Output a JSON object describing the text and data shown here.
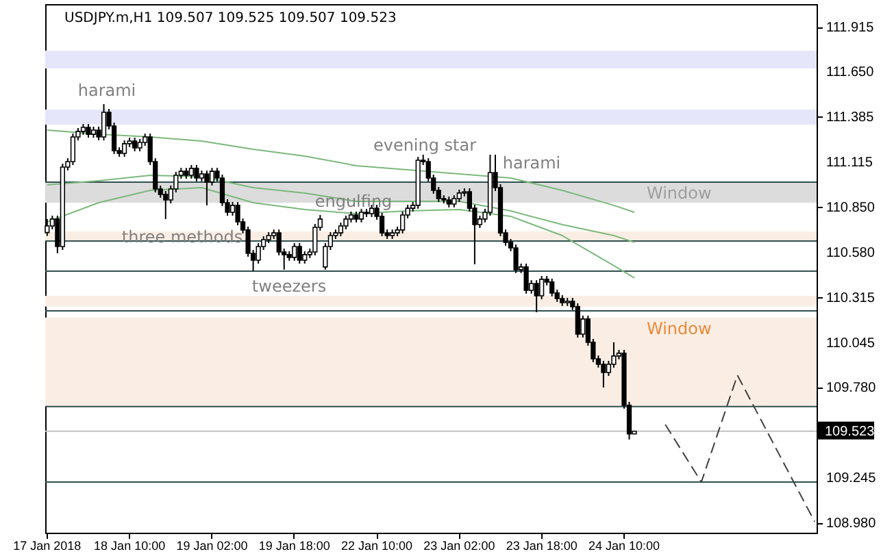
{
  "chart_data": {
    "type": "candlestick",
    "title": "USDJPY.m,H1 109.507 109.525 109.507 109.523",
    "categories": [
      "17 Jan 2018",
      null,
      null,
      null,
      null,
      null,
      null,
      null,
      null,
      null,
      null,
      null,
      null,
      null,
      null,
      null,
      "18 Jan 10:00",
      null,
      null,
      null,
      null,
      null,
      null,
      null,
      null,
      null,
      null,
      null,
      null,
      null,
      null,
      null,
      "19 Jan 02:00",
      null,
      null,
      null,
      null,
      null,
      null,
      null,
      null,
      null,
      null,
      null,
      null,
      null,
      null,
      null,
      "19 Jan 18:00",
      null,
      null,
      null,
      null,
      null,
      null,
      null,
      null,
      null,
      null,
      null,
      null,
      null,
      null,
      null,
      "22 Jan 10:00",
      null,
      null,
      null,
      null,
      null,
      null,
      null,
      null,
      null,
      null,
      null,
      null,
      null,
      null,
      null,
      "23 Jan 02:00",
      null,
      null,
      null,
      null,
      null,
      null,
      null,
      null,
      null,
      null,
      null,
      null,
      null,
      null,
      null,
      "23 Jan 18:00",
      null,
      null,
      null,
      null,
      null,
      null,
      null,
      null,
      null,
      null,
      null,
      null,
      null,
      null,
      null,
      "24 Jan 10:00",
      null,
      null,
      null,
      null,
      null,
      null,
      null,
      null,
      null,
      null,
      null,
      null,
      null,
      null,
      null,
      null,
      null,
      null,
      null,
      null,
      null,
      null,
      null,
      null,
      null,
      null,
      null,
      null,
      null,
      null,
      null,
      null,
      null,
      null,
      null,
      null,
      null
    ],
    "ohlc": [
      [
        110.7,
        110.78,
        110.68,
        110.739
      ],
      [
        110.739,
        110.8,
        110.719,
        110.78
      ],
      [
        110.78,
        110.8,
        110.577,
        110.617
      ],
      [
        110.617,
        111.108,
        110.597,
        111.088
      ],
      [
        111.088,
        111.14,
        111.068,
        111.12
      ],
      [
        111.12,
        111.286,
        111.1,
        111.266
      ],
      [
        111.266,
        111.319,
        111.246,
        111.299
      ],
      [
        111.299,
        111.343,
        111.279,
        111.323
      ],
      [
        111.323,
        111.343,
        111.262,
        111.282
      ],
      [
        111.282,
        111.327,
        111.262,
        111.307
      ],
      [
        111.307,
        111.327,
        111.246,
        111.266
      ],
      [
        111.266,
        111.461,
        111.246,
        111.412
      ],
      [
        111.412,
        111.432,
        111.311,
        111.331
      ],
      [
        111.331,
        111.351,
        111.165,
        111.185
      ],
      [
        111.185,
        111.205,
        111.149,
        111.169
      ],
      [
        111.169,
        111.246,
        111.149,
        111.226
      ],
      [
        111.226,
        111.262,
        111.206,
        111.242
      ],
      [
        111.242,
        111.262,
        111.181,
        111.201
      ],
      [
        111.201,
        111.254,
        111.181,
        111.234
      ],
      [
        111.234,
        111.286,
        111.214,
        111.266
      ],
      [
        111.266,
        111.286,
        111.1,
        111.12
      ],
      [
        111.12,
        111.14,
        110.938,
        110.958
      ],
      [
        110.958,
        110.978,
        110.906,
        110.926
      ],
      [
        110.926,
        110.946,
        110.78,
        110.893
      ],
      [
        110.893,
        110.978,
        110.873,
        110.958
      ],
      [
        110.958,
        111.059,
        110.938,
        111.039
      ],
      [
        111.039,
        111.083,
        111.019,
        111.063
      ],
      [
        111.063,
        111.083,
        111.019,
        111.039
      ],
      [
        111.039,
        111.1,
        111.019,
        111.08
      ],
      [
        111.08,
        111.1,
        111.003,
        111.023
      ],
      [
        111.023,
        111.067,
        111.003,
        111.047
      ],
      [
        111.047,
        111.067,
        110.861,
        110.999
      ],
      [
        110.999,
        111.083,
        110.979,
        111.063
      ],
      [
        111.063,
        111.083,
        111.003,
        111.023
      ],
      [
        111.023,
        111.043,
        110.857,
        110.877
      ],
      [
        110.877,
        110.897,
        110.8,
        110.82
      ],
      [
        110.82,
        110.881,
        110.8,
        110.861
      ],
      [
        110.861,
        110.881,
        110.743,
        110.763
      ],
      [
        110.763,
        110.783,
        110.695,
        110.715
      ],
      [
        110.715,
        110.735,
        110.557,
        110.577
      ],
      [
        110.577,
        110.597,
        110.472,
        110.536
      ],
      [
        110.536,
        110.637,
        110.516,
        110.617
      ],
      [
        110.617,
        110.678,
        110.597,
        110.658
      ],
      [
        110.658,
        110.702,
        110.638,
        110.682
      ],
      [
        110.682,
        110.718,
        110.662,
        110.698
      ],
      [
        110.698,
        110.718,
        110.565,
        110.585
      ],
      [
        110.585,
        110.605,
        110.48,
        110.569
      ],
      [
        110.569,
        110.589,
        110.533,
        110.553
      ],
      [
        110.553,
        110.637,
        110.533,
        110.617
      ],
      [
        110.617,
        110.637,
        110.516,
        110.536
      ],
      [
        110.536,
        110.589,
        110.516,
        110.569
      ],
      [
        110.569,
        110.605,
        110.549,
        110.585
      ],
      [
        110.585,
        110.751,
        110.565,
        110.731
      ],
      [
        110.731,
        110.804,
        110.711,
        110.78
      ],
      [
        110.496,
        110.637,
        110.48,
        110.617
      ],
      [
        110.617,
        110.702,
        110.597,
        110.682
      ],
      [
        110.682,
        110.718,
        110.662,
        110.698
      ],
      [
        110.698,
        110.759,
        110.678,
        110.739
      ],
      [
        110.739,
        110.8,
        110.719,
        110.78
      ],
      [
        110.78,
        110.824,
        110.76,
        110.804
      ],
      [
        110.804,
        110.824,
        110.76,
        110.78
      ],
      [
        110.78,
        110.84,
        110.76,
        110.82
      ],
      [
        110.82,
        110.84,
        110.792,
        110.812
      ],
      [
        110.812,
        110.864,
        110.792,
        110.844
      ],
      [
        110.844,
        110.864,
        110.776,
        110.796
      ],
      [
        110.796,
        110.816,
        110.678,
        110.698
      ],
      [
        110.698,
        110.718,
        110.662,
        110.682
      ],
      [
        110.682,
        110.718,
        110.662,
        110.698
      ],
      [
        110.698,
        110.735,
        110.678,
        110.715
      ],
      [
        110.715,
        110.824,
        110.695,
        110.804
      ],
      [
        110.804,
        110.864,
        110.784,
        110.844
      ],
      [
        110.844,
        110.881,
        110.824,
        110.861
      ],
      [
        110.861,
        111.148,
        110.841,
        111.128
      ],
      [
        111.128,
        111.161,
        111.1,
        111.12
      ],
      [
        111.12,
        111.14,
        111.003,
        111.023
      ],
      [
        111.023,
        111.043,
        110.93,
        110.95
      ],
      [
        110.95,
        110.97,
        110.881,
        110.901
      ],
      [
        110.901,
        110.921,
        110.873,
        110.893
      ],
      [
        110.893,
        110.913,
        110.849,
        110.869
      ],
      [
        110.869,
        110.921,
        110.849,
        110.901
      ],
      [
        110.901,
        110.954,
        110.881,
        110.934
      ],
      [
        110.934,
        110.962,
        110.914,
        110.942
      ],
      [
        110.942,
        110.962,
        110.824,
        110.844
      ],
      [
        110.844,
        110.864,
        110.512,
        110.747
      ],
      [
        110.747,
        110.8,
        110.727,
        110.78
      ],
      [
        110.78,
        110.84,
        110.76,
        110.82
      ],
      [
        110.82,
        111.161,
        110.8,
        111.055
      ],
      [
        111.055,
        111.161,
        110.946,
        110.966
      ],
      [
        110.966,
        110.986,
        110.678,
        110.698
      ],
      [
        110.698,
        110.718,
        110.622,
        110.642
      ],
      [
        110.642,
        110.662,
        110.589,
        110.609
      ],
      [
        110.609,
        110.629,
        110.46,
        110.48
      ],
      [
        110.48,
        110.516,
        110.46,
        110.496
      ],
      [
        110.496,
        110.516,
        110.338,
        110.358
      ],
      [
        110.358,
        110.418,
        110.338,
        110.398
      ],
      [
        110.398,
        110.418,
        110.228,
        110.325
      ],
      [
        110.325,
        110.443,
        110.305,
        110.423
      ],
      [
        110.423,
        110.443,
        110.387,
        110.407
      ],
      [
        110.407,
        110.427,
        110.322,
        110.342
      ],
      [
        110.342,
        110.362,
        110.289,
        110.309
      ],
      [
        110.309,
        110.329,
        110.265,
        110.285
      ],
      [
        110.285,
        110.313,
        110.265,
        110.293
      ],
      [
        110.293,
        110.313,
        110.241,
        110.261
      ],
      [
        110.261,
        110.281,
        110.078,
        110.098
      ],
      [
        110.098,
        110.208,
        110.078,
        110.188
      ],
      [
        110.188,
        110.208,
        110.03,
        110.05
      ],
      [
        110.05,
        110.07,
        109.932,
        109.952
      ],
      [
        109.952,
        109.972,
        109.9,
        109.92
      ],
      [
        109.92,
        109.94,
        109.782,
        109.871
      ],
      [
        109.871,
        109.94,
        109.851,
        109.92
      ],
      [
        109.92,
        110.05,
        109.9,
        109.969
      ],
      [
        109.969,
        110.005,
        109.949,
        109.985
      ],
      [
        109.985,
        110.005,
        109.657,
        109.677
      ],
      [
        109.677,
        109.697,
        109.474,
        109.507
      ],
      [
        109.507,
        109.525,
        109.507,
        109.523
      ],
      null,
      null,
      null,
      null,
      null,
      null,
      null,
      null,
      null,
      null,
      null,
      null,
      null,
      null,
      null,
      null,
      null,
      null,
      null,
      null,
      null,
      null,
      null,
      null,
      null,
      null,
      null,
      null,
      null,
      null,
      null,
      null,
      null,
      null,
      null
    ],
    "series": [
      {
        "type": "line",
        "color": "#7cb87c",
        "values": [
          111.307,
          null,
          null,
          null,
          null,
          null,
          null,
          null,
          null,
          null,
          111.282,
          null,
          null,
          null,
          null,
          null,
          null,
          null,
          null,
          null,
          111.266,
          null,
          null,
          null,
          null,
          null,
          null,
          null,
          null,
          null,
          111.242,
          null,
          null,
          null,
          null,
          null,
          null,
          null,
          null,
          null,
          111.193,
          null,
          null,
          null,
          null,
          null,
          null,
          null,
          null,
          null,
          111.153,
          null,
          null,
          null,
          null,
          null,
          null,
          null,
          null,
          null,
          111.096,
          null,
          null,
          null,
          null,
          null,
          null,
          null,
          null,
          null,
          111.072,
          null,
          null,
          null,
          null,
          null,
          null,
          null,
          null,
          null,
          111.047,
          null,
          null,
          null,
          null,
          null,
          null,
          null,
          null,
          null,
          111.023,
          null,
          null,
          null,
          null,
          null,
          null,
          null,
          null,
          null,
          110.95,
          null,
          null,
          null,
          null,
          null,
          null,
          null,
          null,
          null,
          110.861,
          null,
          null,
          null,
          110.82,
          null,
          null,
          null,
          null,
          null,
          null,
          null,
          null,
          null,
          null,
          null,
          null,
          null,
          null,
          null,
          null,
          null,
          null,
          null,
          null,
          null,
          null,
          null,
          null,
          null,
          null,
          null,
          null,
          null,
          null,
          null,
          null,
          null,
          null,
          null
        ]
      },
      {
        "type": "line",
        "color": "#7cb87c",
        "values": [
          110.982,
          null,
          null,
          null,
          null,
          null,
          null,
          null,
          null,
          null,
          111.007,
          null,
          null,
          null,
          null,
          null,
          null,
          null,
          null,
          null,
          111.039,
          null,
          null,
          null,
          null,
          null,
          null,
          null,
          null,
          null,
          111.031,
          null,
          null,
          null,
          null,
          null,
          null,
          null,
          null,
          null,
          110.966,
          null,
          null,
          null,
          null,
          null,
          null,
          null,
          null,
          null,
          110.934,
          null,
          null,
          null,
          null,
          null,
          null,
          null,
          null,
          null,
          110.885,
          null,
          null,
          null,
          null,
          null,
          null,
          null,
          null,
          null,
          110.885,
          null,
          null,
          null,
          null,
          null,
          null,
          null,
          null,
          null,
          110.885,
          null,
          null,
          null,
          null,
          null,
          null,
          null,
          null,
          null,
          110.828,
          null,
          null,
          null,
          null,
          null,
          null,
          null,
          null,
          null,
          110.747,
          null,
          null,
          null,
          null,
          null,
          null,
          null,
          null,
          null,
          110.682,
          null,
          null,
          null,
          110.642,
          null,
          null,
          null,
          null,
          null,
          null,
          null,
          null,
          null,
          null,
          null,
          null,
          null,
          null,
          null,
          null,
          null,
          null,
          null,
          null,
          null,
          null,
          null,
          null,
          null,
          null,
          null,
          null,
          null,
          null,
          null,
          null,
          null,
          null,
          null
        ]
      },
      {
        "type": "line",
        "color": "#7cb87c",
        "values": [
          110.763,
          null,
          null,
          null,
          null,
          null,
          null,
          null,
          null,
          null,
          110.877,
          null,
          null,
          null,
          null,
          null,
          null,
          null,
          null,
          null,
          110.95,
          null,
          null,
          null,
          null,
          null,
          null,
          null,
          null,
          null,
          110.966,
          null,
          null,
          null,
          null,
          null,
          null,
          null,
          null,
          null,
          110.877,
          null,
          null,
          null,
          null,
          null,
          null,
          null,
          null,
          null,
          110.836,
          null,
          null,
          null,
          null,
          null,
          null,
          null,
          null,
          null,
          110.812,
          null,
          null,
          null,
          null,
          null,
          null,
          null,
          null,
          null,
          110.828,
          null,
          null,
          null,
          null,
          null,
          null,
          null,
          null,
          null,
          110.836,
          null,
          null,
          null,
          null,
          null,
          null,
          null,
          null,
          null,
          110.796,
          null,
          null,
          null,
          null,
          null,
          null,
          null,
          null,
          null,
          110.682,
          null,
          null,
          null,
          null,
          null,
          null,
          null,
          null,
          null,
          110.504,
          null,
          null,
          null,
          110.431,
          null,
          null,
          null,
          null,
          null,
          null,
          null,
          null,
          null,
          null,
          null,
          null,
          null,
          null,
          null,
          null,
          null,
          null,
          null,
          null,
          null,
          null,
          null,
          null,
          null,
          null,
          null,
          null,
          null,
          null,
          null,
          null,
          null,
          null,
          null
        ]
      },
      {
        "type": "line",
        "color": "#404040",
        "line_style": "dashed",
        "values": [
          null,
          null,
          null,
          null,
          null,
          null,
          null,
          null,
          null,
          null,
          null,
          null,
          null,
          null,
          null,
          null,
          null,
          null,
          null,
          null,
          null,
          null,
          null,
          null,
          null,
          null,
          null,
          null,
          null,
          null,
          null,
          null,
          null,
          null,
          null,
          null,
          null,
          null,
          null,
          null,
          null,
          null,
          null,
          null,
          null,
          null,
          null,
          null,
          null,
          null,
          null,
          null,
          null,
          null,
          null,
          null,
          null,
          null,
          null,
          null,
          null,
          null,
          null,
          null,
          null,
          null,
          null,
          null,
          null,
          null,
          null,
          null,
          null,
          null,
          null,
          null,
          null,
          null,
          null,
          null,
          null,
          null,
          null,
          null,
          null,
          null,
          null,
          null,
          null,
          null,
          null,
          null,
          null,
          null,
          null,
          null,
          null,
          null,
          null,
          null,
          null,
          null,
          null,
          null,
          null,
          null,
          null,
          null,
          null,
          null,
          null,
          null,
          null,
          null,
          null,
          null,
          null,
          null,
          null,
          null,
          109.563,
          null,
          null,
          null,
          null,
          null,
          null,
          109.222,
          null,
          null,
          null,
          null,
          null,
          null,
          109.855,
          null,
          null,
          null,
          null,
          null,
          null,
          null,
          null,
          null,
          null,
          null,
          null,
          null,
          null,
          108.987
        ]
      }
    ],
    "ylim": [
      108.922,
      112.053
    ],
    "yticks": [
      111.915,
      {
        "value": 111.65,
        "label": "111.650"
      },
      111.385,
      111.115,
      {
        "value": 110.85,
        "label": "110.850"
      },
      {
        "value": 110.58,
        "label": "110.580"
      },
      110.315,
      110.045,
      {
        "value": 109.78,
        "label": "109.780"
      },
      109.245,
      {
        "value": 108.98,
        "label": "108.980"
      }
    ],
    "bands": [
      {
        "axis": "y",
        "from": 111.672,
        "to": 111.777,
        "color": "#e6e6fa"
      },
      {
        "axis": "y",
        "from": 111.339,
        "to": 111.428,
        "color": "#e6e6fa"
      },
      {
        "axis": "y",
        "from": 110.877,
        "to": 110.999,
        "color": "#dcdcdc",
        "label": "Window"
      },
      {
        "axis": "y",
        "from": 110.65,
        "to": 110.707,
        "color": "#faeee4"
      },
      {
        "axis": "y",
        "from": 110.261,
        "to": 110.325,
        "color": "#faeee4"
      },
      {
        "axis": "y",
        "from": 109.669,
        "to": 110.196,
        "color": "#faeee4",
        "label": "Window"
      }
    ],
    "ref_lines": [
      {
        "axis": "y",
        "value": 110.999,
        "color": "#2f4f4f"
      },
      {
        "axis": "y",
        "value": 110.65,
        "color": "#2f4f4f"
      },
      {
        "axis": "y",
        "value": 110.471,
        "color": "#2f4f4f"
      },
      {
        "axis": "y",
        "value": 110.236,
        "color": "#2f4f4f"
      },
      {
        "axis": "y",
        "value": 109.669,
        "color": "#2f4f4f"
      },
      {
        "axis": "y",
        "value": 109.222,
        "color": "#2f4f4f"
      },
      {
        "axis": "y",
        "value": 109.523,
        "color": "#c0c0c0",
        "label": "109.523"
      }
    ],
    "annotations": [
      "harami",
      {
        "text": "three methods",
        "y": 110.674
      },
      "tweezers",
      {
        "text": "engulfing",
        "y": 110.885
      },
      "evening star",
      "harami"
    ]
  }
}
